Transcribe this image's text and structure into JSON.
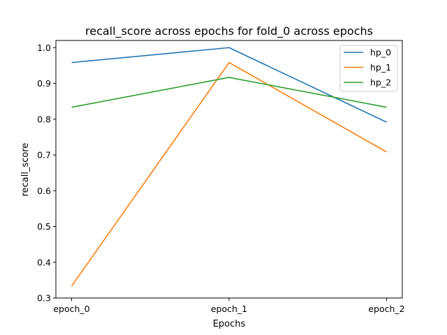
{
  "chart_data": {
    "type": "line",
    "title": "recall_score across epochs for fold_0 across epochs",
    "xlabel": "Epochs",
    "ylabel": "recall_score",
    "categories": [
      "epoch_0",
      "epoch_1",
      "epoch_2"
    ],
    "ylim": [
      0.3,
      1.02
    ],
    "yticks": [
      "0.3",
      "0.4",
      "0.5",
      "0.6",
      "0.7",
      "0.8",
      "0.9",
      "1.0"
    ],
    "grid": false,
    "legend_position": "top-right",
    "series": [
      {
        "name": "hp_0",
        "color": "#1f77b4",
        "values": [
          0.9583,
          1.0,
          0.7917
        ]
      },
      {
        "name": "hp_1",
        "color": "#ff7f0e",
        "values": [
          0.3333,
          0.9583,
          0.7083
        ]
      },
      {
        "name": "hp_2",
        "color": "#2ca02c",
        "values": [
          0.8333,
          0.9167,
          0.8333
        ]
      }
    ]
  }
}
